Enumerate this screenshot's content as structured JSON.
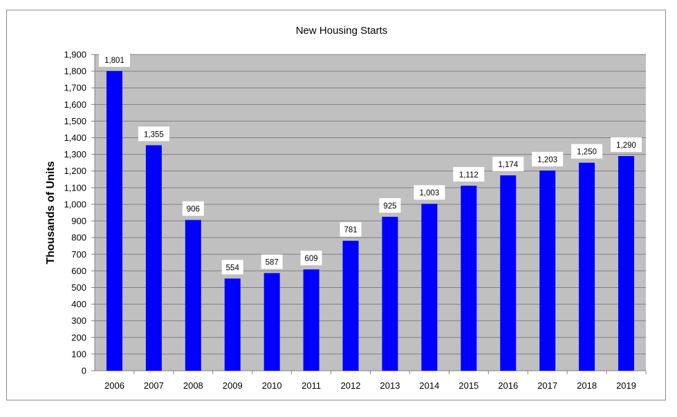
{
  "chart_data": {
    "type": "bar",
    "title": "New Housing Starts",
    "xlabel": "",
    "ylabel": "Thousands  of Units",
    "categories": [
      "2006",
      "2007",
      "2008",
      "2009",
      "2010",
      "2011",
      "2012",
      "2013",
      "2014",
      "2015",
      "2016",
      "2017",
      "2018",
      "2019"
    ],
    "series": [
      {
        "values": [
          1801,
          1355,
          906,
          554,
          587,
          609,
          781,
          925,
          1003,
          1112,
          1174,
          1203,
          1250,
          1290
        ],
        "data_labels": [
          "1,801",
          "1,355",
          "906",
          "554",
          "587",
          "609",
          "781",
          "925",
          "1,003",
          "1,112",
          "1,174",
          "1,203",
          "1,250",
          "1,290"
        ]
      }
    ],
    "ylim": [
      0,
      1900
    ],
    "yticks": [
      0,
      100,
      200,
      300,
      400,
      500,
      600,
      700,
      800,
      900,
      1000,
      1100,
      1200,
      1300,
      1400,
      1500,
      1600,
      1700,
      1800,
      1900
    ],
    "ytick_labels": [
      "0",
      "100",
      "200",
      "300",
      "400",
      "500",
      "600",
      "700",
      "800",
      "900",
      "1,000",
      "1,100",
      "1,200",
      "1,300",
      "1,400",
      "1,500",
      "1,600",
      "1,700",
      "1,800",
      "1,900"
    ],
    "grid": true,
    "legend": "none",
    "colors": {
      "bar": "#0000ff",
      "plot_background": "#c0c0c0",
      "gridline": "#808080",
      "label_box": "#ffffff",
      "frame_border": "#8c8c8c"
    }
  }
}
